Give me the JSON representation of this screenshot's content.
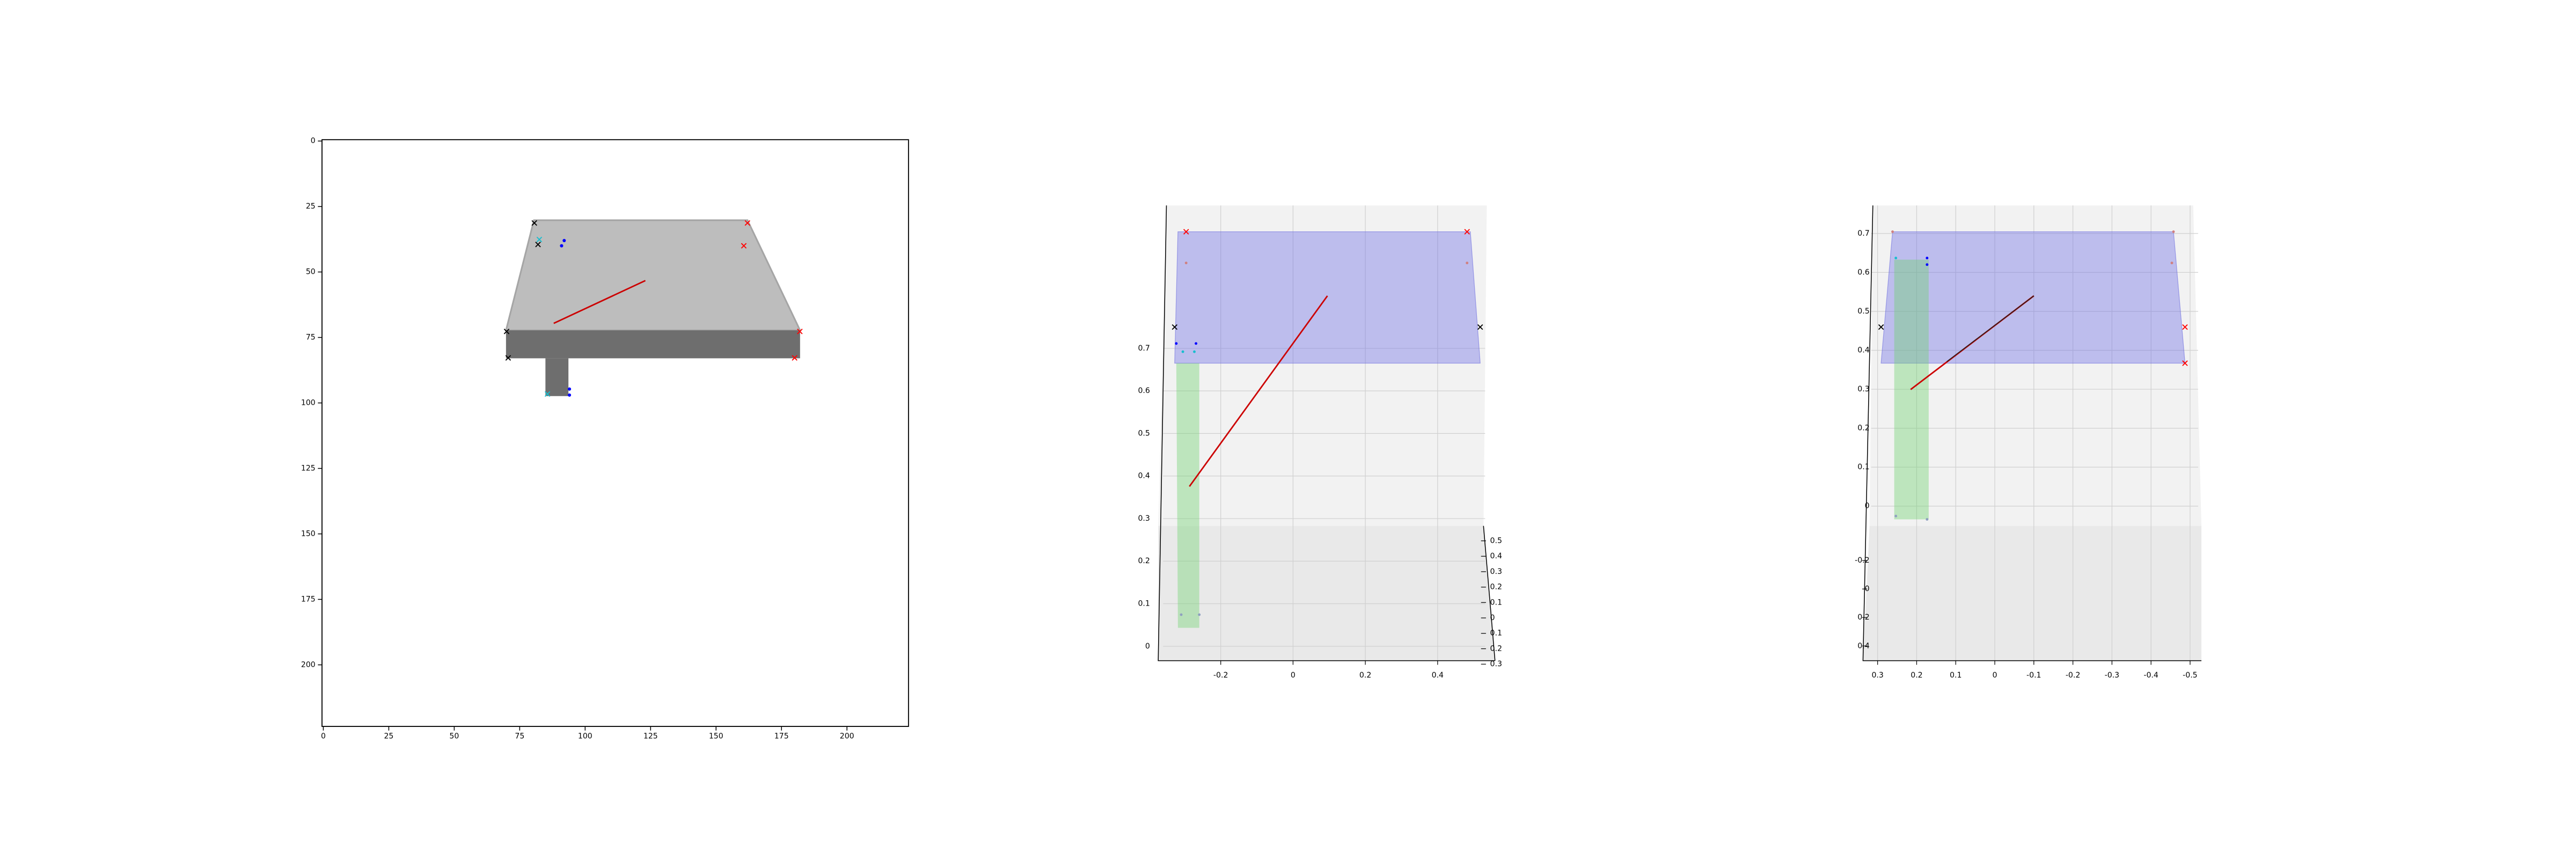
{
  "chart_data": [
    {
      "type": "image",
      "xlim": [
        -0.5,
        223.5
      ],
      "ylim": [
        223.5,
        -0.5
      ],
      "xticks": [
        0,
        25,
        50,
        75,
        100,
        125,
        150,
        175,
        200
      ],
      "yticks": [
        0,
        25,
        50,
        75,
        100,
        125,
        150,
        175,
        200
      ],
      "series": [
        {
          "marker": "x",
          "color": "#000000",
          "x": [
            80.6,
            82,
            70,
            70.6
          ],
          "y": [
            31.3,
            39.5,
            72.7,
            82.8
          ]
        },
        {
          "marker": "x",
          "color": "#17becf",
          "x": [
            82.5,
            85.6
          ],
          "y": [
            37.6,
            96.6
          ]
        },
        {
          "marker": "o",
          "color": "#0000ff",
          "x": [
            92,
            91,
            94,
            94
          ],
          "y": [
            38,
            40,
            94.7,
            97
          ]
        },
        {
          "marker": "x",
          "color": "#ff0000",
          "x": [
            162,
            160.6,
            182,
            180
          ],
          "y": [
            31.3,
            40,
            72.7,
            82.8
          ]
        }
      ],
      "lines": [
        {
          "color": "#cc0000",
          "x": [
            88,
            123
          ],
          "y": [
            69.6,
            53.3
          ]
        }
      ]
    },
    {
      "type": "3d",
      "xlim": [
        -0.373,
        0.536
      ],
      "xticks": [
        -0.2,
        0.0,
        0.2,
        0.4
      ],
      "ylim": [
        -0.32,
        0.55
      ],
      "yticks": [
        0.5,
        0.4,
        0.3,
        0.2,
        0.1,
        0.0,
        {
          "value": -0.1,
          "label": "0.1"
        },
        {
          "value": -0.2,
          "label": "0.2"
        },
        {
          "value": -0.3,
          "label": "0.3"
        }
      ],
      "zlim": [
        -0.03,
        0.75
      ],
      "zticks": [
        0.0,
        0.1,
        0.2,
        0.3,
        0.4,
        0.5,
        0.6,
        0.7
      ]
    },
    {
      "type": "3d",
      "xlim": [
        0.329,
        -0.529
      ],
      "xticks": [
        0.3,
        0.2,
        0.1,
        0.0,
        -0.1,
        -0.2,
        -0.3,
        -0.4,
        -0.5
      ],
      "ylim": [
        -0.25,
        0.45
      ],
      "yticks": [
        -0.2,
        0.0,
        0.2,
        0.4
      ],
      "zlim": [
        -0.02,
        0.75
      ],
      "zticks": [
        0.0,
        0.1,
        0.2,
        0.3,
        0.4,
        0.5,
        0.6,
        0.7
      ]
    }
  ]
}
